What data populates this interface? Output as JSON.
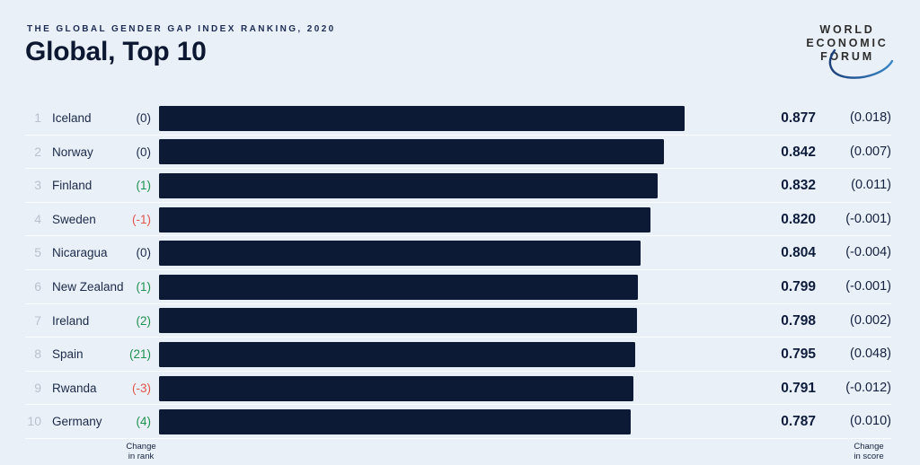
{
  "header": {
    "kicker": "THE GLOBAL GENDER GAP INDEX RANKING, 2020",
    "title": "Global, Top 10"
  },
  "logo": {
    "line1": "WORLD",
    "line2": "ECONOMIC",
    "line3": "FORUM"
  },
  "footer": {
    "rank_change_label": "Change\nin rank",
    "score_change_label": "Change\nin score"
  },
  "colors": {
    "background": "#e9f0f7",
    "bar": "#0d1a36",
    "positive": "#1f9150",
    "negative": "#e2554c",
    "neutral_text": "#1b2a4a",
    "rank_number": "#b8c1cd",
    "title_text": "#0c1831",
    "logo_arc": "#2766a3"
  },
  "chart_data": {
    "type": "bar",
    "orientation": "horizontal",
    "title": "Global, Top 10",
    "subtitle": "THE GLOBAL GENDER GAP INDEX RANKING, 2020",
    "xlim": [
      0,
      0.877
    ],
    "grid": false,
    "legend": false,
    "categories": [
      "Iceland",
      "Norway",
      "Finland",
      "Sweden",
      "Nicaragua",
      "New Zealand",
      "Ireland",
      "Spain",
      "Rwanda",
      "Germany"
    ],
    "values": [
      0.877,
      0.842,
      0.832,
      0.82,
      0.804,
      0.799,
      0.798,
      0.795,
      0.791,
      0.787
    ],
    "rows": [
      {
        "rank": "1",
        "country": "Iceland",
        "rank_change": "(0)",
        "rank_change_sign": "neutral",
        "value": 0.877,
        "score": "0.877",
        "score_change": "(0.018)"
      },
      {
        "rank": "2",
        "country": "Norway",
        "rank_change": "(0)",
        "rank_change_sign": "neutral",
        "value": 0.842,
        "score": "0.842",
        "score_change": "(0.007)"
      },
      {
        "rank": "3",
        "country": "Finland",
        "rank_change": "(1)",
        "rank_change_sign": "positive",
        "value": 0.832,
        "score": "0.832",
        "score_change": "(0.011)"
      },
      {
        "rank": "4",
        "country": "Sweden",
        "rank_change": "(-1)",
        "rank_change_sign": "negative",
        "value": 0.82,
        "score": "0.820",
        "score_change": "(-0.001)"
      },
      {
        "rank": "5",
        "country": "Nicaragua",
        "rank_change": "(0)",
        "rank_change_sign": "neutral",
        "value": 0.804,
        "score": "0.804",
        "score_change": "(-0.004)"
      },
      {
        "rank": "6",
        "country": "New Zealand",
        "rank_change": "(1)",
        "rank_change_sign": "positive",
        "value": 0.799,
        "score": "0.799",
        "score_change": "(-0.001)"
      },
      {
        "rank": "7",
        "country": "Ireland",
        "rank_change": "(2)",
        "rank_change_sign": "positive",
        "value": 0.798,
        "score": "0.798",
        "score_change": "(0.002)"
      },
      {
        "rank": "8",
        "country": "Spain",
        "rank_change": "(21)",
        "rank_change_sign": "positive",
        "value": 0.795,
        "score": "0.795",
        "score_change": "(0.048)"
      },
      {
        "rank": "9",
        "country": "Rwanda",
        "rank_change": "(-3)",
        "rank_change_sign": "negative",
        "value": 0.791,
        "score": "0.791",
        "score_change": "(-0.012)"
      },
      {
        "rank": "10",
        "country": "Germany",
        "rank_change": "(4)",
        "rank_change_sign": "positive",
        "value": 0.787,
        "score": "0.787",
        "score_change": "(0.010)"
      }
    ]
  }
}
